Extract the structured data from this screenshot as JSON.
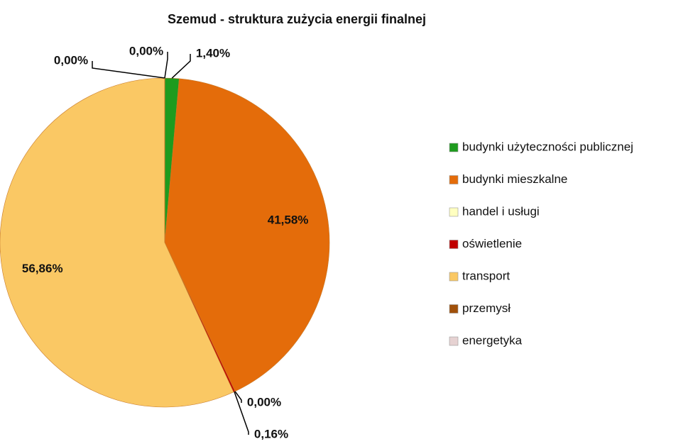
{
  "chart_data": {
    "type": "pie",
    "title": "Szemud - struktura zużycia energii finalnej",
    "categories": [
      "budynki użyteczności publicznej",
      "budynki mieszkalne",
      "handel i usługi",
      "oświetlenie",
      "transport",
      "przemysł",
      "energetyka"
    ],
    "values": [
      1.4,
      41.58,
      0.0,
      0.16,
      56.86,
      0.0,
      0.0
    ],
    "value_labels": [
      "1,40%",
      "41,58%",
      "0,00%",
      "0,16%",
      "56,86%",
      "0,00%",
      "0,00%"
    ],
    "colors": [
      "#1e9b1e",
      "#e46c0a",
      "#ffffc0",
      "#c00000",
      "#fac864",
      "#a0500a",
      "#e6d2d2"
    ],
    "legend": "right"
  }
}
